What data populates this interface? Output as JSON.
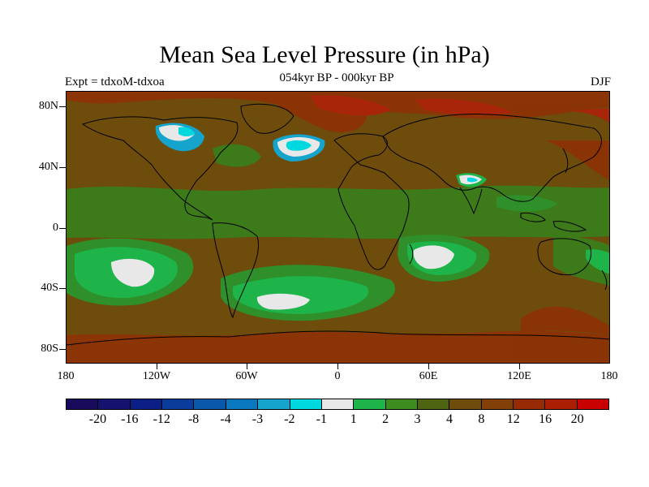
{
  "title": "Mean Sea Level Pressure (in hPa)",
  "subtitle": "054kyr BP - 000kyr BP",
  "experiment": "Expt = tdxoM-tdxoa",
  "season": "DJF",
  "axes": {
    "lat_labels": [
      "80N",
      "40N",
      "0",
      "40S",
      "80S"
    ],
    "lon_labels": [
      "180",
      "120W",
      "60W",
      "0",
      "60E",
      "120E",
      "180"
    ]
  },
  "colorbar": {
    "labels": [
      "-20",
      "-16",
      "-12",
      "-8",
      "-4",
      "-3",
      "-2",
      "-1",
      "1",
      "2",
      "3",
      "4",
      "8",
      "12",
      "16",
      "20"
    ],
    "colors": [
      "#1a0a5c",
      "#14126e",
      "#0b1f86",
      "#0a3c9c",
      "#0a58aa",
      "#0a78be",
      "#14a4cc",
      "#00d8e0",
      "#e8e8e8",
      "#1eb44a",
      "#3c8c20",
      "#4e6410",
      "#6e4c0c",
      "#824008",
      "#962a04",
      "#aa1e04",
      "#c80000"
    ]
  },
  "palette": {
    "ocean_background": "#6e4c0c",
    "land": "#6b4b0b",
    "highlight_red": "#962a04"
  }
}
